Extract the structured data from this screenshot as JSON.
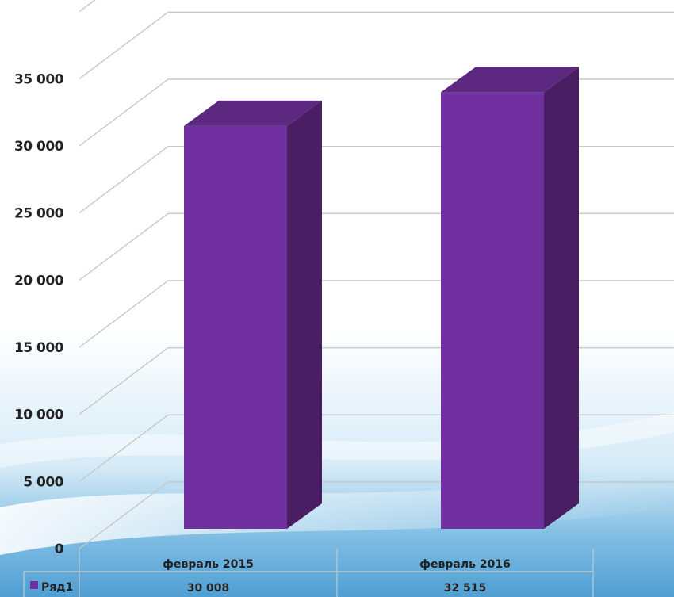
{
  "chart_data": {
    "type": "bar",
    "categories": [
      "февраль 2015",
      "февраль 2016"
    ],
    "series": [
      {
        "name": "Ряд1",
        "values": [
          30008,
          32515
        ],
        "value_labels": [
          "30 008",
          "32 515"
        ]
      }
    ],
    "title": "",
    "xlabel": "",
    "ylabel": "",
    "ylim": [
      0,
      35000
    ],
    "yticks": [
      0,
      5000,
      10000,
      15000,
      20000,
      25000,
      30000,
      35000
    ],
    "ytick_labels": [
      "0",
      "5 000",
      "10 000",
      "15 000",
      "20 000",
      "25 000",
      "30 000",
      "35 000"
    ],
    "grid": true,
    "three_d": true,
    "data_table": true,
    "colors": {
      "bar_front": "#7030A0",
      "bar_side": "#4A1E62",
      "bar_top": "#5C2880",
      "legend_key": "#7030A0"
    }
  }
}
